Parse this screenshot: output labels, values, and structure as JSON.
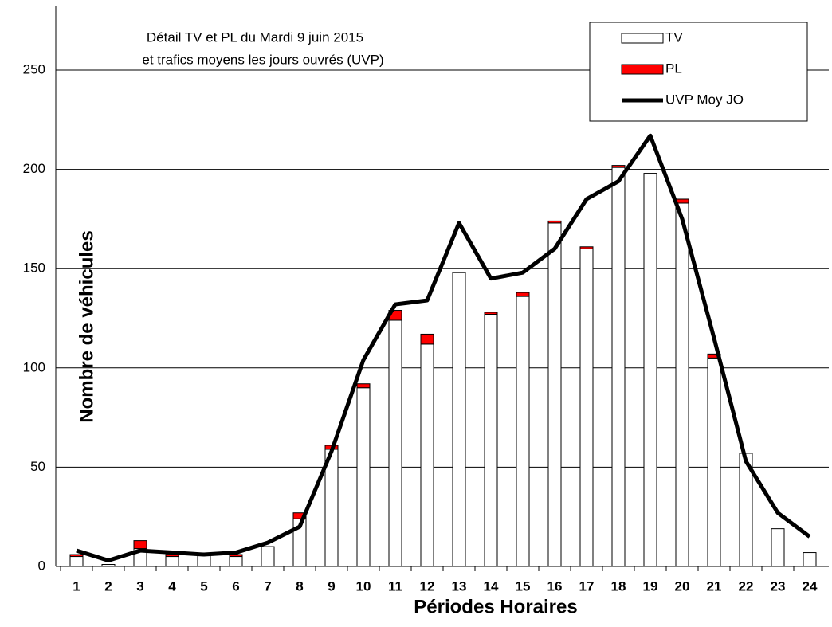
{
  "chart_data": {
    "type": "stacked-bar-line",
    "title": [
      "Détail TV et PL du Mardi 9 juin 2015",
      "et trafics moyens les jours ouvrés (UVP)"
    ],
    "x_label": "Périodes Horaires",
    "y_label": "Nombre de véhicules",
    "categories": [
      "1",
      "2",
      "3",
      "4",
      "5",
      "6",
      "7",
      "8",
      "9",
      "10",
      "11",
      "12",
      "13",
      "14",
      "15",
      "16",
      "17",
      "18",
      "19",
      "20",
      "21",
      "22",
      "23",
      "24"
    ],
    "series": [
      {
        "name": "TV",
        "type": "bar",
        "color": "#ffffff",
        "values": [
          5,
          1,
          9,
          5,
          6,
          5,
          10,
          24,
          59,
          90,
          124,
          112,
          148,
          127,
          136,
          173,
          160,
          201,
          198,
          183,
          105,
          57,
          19,
          7
        ]
      },
      {
        "name": "PL",
        "type": "bar",
        "color": "#ff0000",
        "values": [
          1,
          0,
          4,
          1,
          0,
          1,
          0,
          3,
          2,
          2,
          5,
          5,
          0,
          1,
          2,
          1,
          1,
          1,
          0,
          2,
          2,
          0,
          0,
          0
        ]
      },
      {
        "name": "UVP Moy JO",
        "type": "line",
        "color": "#000000",
        "values": [
          8,
          3,
          8,
          7,
          6,
          7,
          12,
          20,
          58,
          104,
          132,
          134,
          173,
          145,
          148,
          160,
          185,
          194,
          217,
          175,
          115,
          53,
          27,
          15
        ]
      }
    ],
    "ylim": [
      0,
      250
    ],
    "yticks": [
      0,
      50,
      100,
      150,
      200,
      250
    ],
    "grid": true,
    "legend": "top-right"
  }
}
